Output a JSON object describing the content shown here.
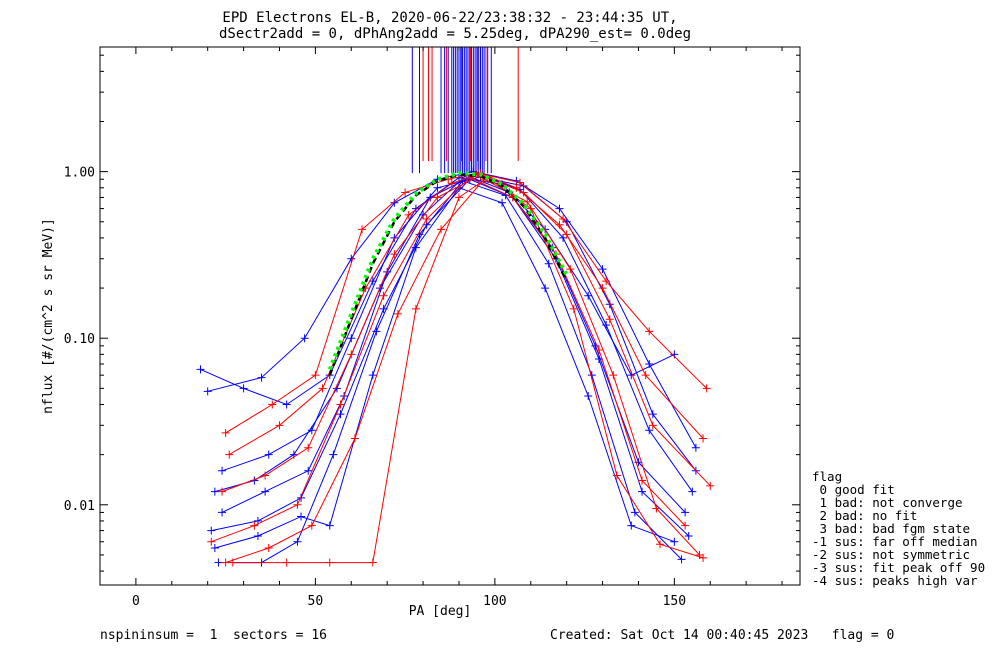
{
  "title_line1": "EPD Electrons EL-B, 2020-06-22/23:38:32 - 23:44:35 UT,",
  "title_line2": "dSectr2add = 0, dPhAng2add = 5.25deg, dPA290_est=   0.0deg",
  "footer": {
    "left": "nspininsum =  1  sectors = 16",
    "right": "Created: Sat Oct 14 00:40:45 2023   flag = 0"
  },
  "legend": {
    "title": "flag",
    "items": [
      " 0 good fit",
      " 1 bad: not converge",
      " 2 bad: no fit",
      " 3 bad: bad fgm state",
      "-1 sus: far off median",
      "-2 sus: not symmetric",
      "-3 sus: fit peak off 90",
      "-4 sus: peaks high var"
    ]
  },
  "colors": {
    "series_blue": "#0000ff",
    "series_red": "#ff0000",
    "median": "#000000",
    "fit": "#00ff00"
  },
  "chart_data": {
    "type": "line",
    "xlabel": "PA [deg]",
    "ylabel": "nflux [#/(cm^2 s sr MeV)]",
    "xlim": [
      -10,
      185
    ],
    "ylim_log": [
      0.0033,
      5.6
    ],
    "y_scale": "log",
    "x_ticks": [
      0,
      50,
      100,
      150
    ],
    "x_tick_labels": [
      "0",
      "50",
      "100",
      "150"
    ],
    "y_ticks": [
      0.01,
      0.1,
      1.0
    ],
    "y_tick_labels": [
      "0.01",
      "0.10",
      "1.00"
    ],
    "series": [
      {
        "color": "blue",
        "x": [
          20,
          35,
          47,
          60,
          72,
          84,
          94,
          106,
          118,
          130,
          143,
          156
        ],
        "y": [
          0.048,
          0.058,
          0.1,
          0.3,
          0.65,
          0.9,
          1.0,
          0.88,
          0.6,
          0.26,
          0.07,
          0.022
        ]
      },
      {
        "color": "blue",
        "x": [
          22,
          33,
          44,
          56,
          68,
          80,
          92,
          104,
          116,
          128,
          140,
          153
        ],
        "y": [
          0.012,
          0.014,
          0.02,
          0.05,
          0.2,
          0.55,
          0.95,
          0.75,
          0.35,
          0.09,
          0.018,
          0.009
        ]
      },
      {
        "color": "blue",
        "x": [
          21,
          34,
          46,
          57,
          69,
          81,
          93,
          105,
          117,
          129,
          141,
          154
        ],
        "y": [
          0.007,
          0.008,
          0.011,
          0.035,
          0.15,
          0.48,
          0.9,
          0.7,
          0.3,
          0.075,
          0.012,
          0.0065
        ]
      },
      {
        "color": "blue",
        "x": [
          23,
          35,
          45,
          55,
          67,
          79,
          91,
          103,
          115,
          127,
          139,
          152
        ],
        "y": [
          0.0045,
          0.0045,
          0.006,
          0.02,
          0.11,
          0.42,
          0.88,
          0.72,
          0.28,
          0.06,
          0.009,
          0.0047
        ]
      },
      {
        "color": "blue",
        "x": [
          18,
          30,
          42,
          54,
          66,
          78,
          90,
          102,
          114,
          126,
          138,
          150
        ],
        "y": [
          0.065,
          0.05,
          0.04,
          0.06,
          0.22,
          0.6,
          0.92,
          0.84,
          0.45,
          0.18,
          0.06,
          0.08
        ]
      },
      {
        "color": "blue",
        "x": [
          24,
          36,
          48,
          58,
          70,
          82,
          95,
          107,
          119,
          131,
          143,
          155
        ],
        "y": [
          0.009,
          0.012,
          0.016,
          0.045,
          0.25,
          0.7,
          0.97,
          0.78,
          0.4,
          0.12,
          0.028,
          0.012
        ]
      },
      {
        "color": "blue",
        "x": [
          22,
          34,
          46,
          54,
          66,
          78,
          90,
          102,
          114,
          126,
          138,
          150
        ],
        "y": [
          0.0055,
          0.0065,
          0.0085,
          0.0075,
          0.06,
          0.35,
          0.8,
          0.65,
          0.2,
          0.045,
          0.0075,
          0.006
        ]
      },
      {
        "color": "blue",
        "x": [
          24,
          37,
          49,
          60,
          72,
          84,
          96,
          108,
          120,
          132,
          144,
          156
        ],
        "y": [
          0.016,
          0.02,
          0.028,
          0.1,
          0.4,
          0.8,
          0.93,
          0.82,
          0.5,
          0.16,
          0.035,
          0.016
        ]
      },
      {
        "color": "red",
        "x": [
          21,
          33,
          45,
          57,
          69,
          81,
          93,
          105,
          117,
          129,
          141,
          153
        ],
        "y": [
          0.006,
          0.0075,
          0.01,
          0.04,
          0.18,
          0.52,
          0.92,
          0.7,
          0.32,
          0.085,
          0.014,
          0.0075
        ]
      },
      {
        "color": "red",
        "x": [
          25,
          37,
          49,
          61,
          73,
          85,
          97,
          109,
          121,
          133,
          145,
          157
        ],
        "y": [
          0.0045,
          0.0055,
          0.0075,
          0.025,
          0.14,
          0.45,
          0.9,
          0.66,
          0.26,
          0.06,
          0.0095,
          0.005
        ]
      },
      {
        "color": "red",
        "x": [
          24,
          36,
          48,
          60,
          72,
          84,
          96,
          108,
          120,
          132,
          144,
          160
        ],
        "y": [
          0.012,
          0.015,
          0.022,
          0.08,
          0.32,
          0.7,
          0.95,
          0.75,
          0.42,
          0.13,
          0.03,
          0.013
        ]
      },
      {
        "color": "red",
        "x": [
          26,
          40,
          52,
          64,
          76,
          88,
          96,
          106,
          118,
          130,
          142,
          158
        ],
        "y": [
          0.02,
          0.03,
          0.05,
          0.2,
          0.55,
          0.85,
          0.98,
          0.8,
          0.48,
          0.2,
          0.06,
          0.025
        ]
      },
      {
        "color": "red",
        "x": [
          27,
          42,
          54,
          66,
          78,
          90,
          98,
          110,
          122,
          134,
          146,
          158
        ],
        "y": [
          0.0045,
          0.0045,
          0.0045,
          0.0045,
          0.15,
          0.7,
          0.92,
          0.6,
          0.15,
          0.015,
          0.0058,
          0.0048
        ]
      },
      {
        "color": "red",
        "x": [
          25,
          38,
          50,
          63,
          75,
          87,
          95,
          107,
          119,
          131,
          143,
          159
        ],
        "y": [
          0.027,
          0.04,
          0.06,
          0.45,
          0.75,
          0.9,
          0.98,
          0.86,
          0.52,
          0.22,
          0.11,
          0.05
        ]
      }
    ],
    "median_dashed": {
      "color": "black",
      "x": [
        54,
        60,
        66,
        72,
        78,
        84,
        90,
        96,
        102,
        108,
        114,
        120
      ],
      "y": [
        0.06,
        0.13,
        0.28,
        0.5,
        0.72,
        0.88,
        0.96,
        0.94,
        0.82,
        0.62,
        0.4,
        0.22
      ]
    },
    "fit_dotted": {
      "color": "green",
      "x": [
        54,
        60,
        66,
        72,
        78,
        84,
        90,
        96,
        102,
        108,
        114,
        120
      ],
      "y": [
        0.065,
        0.14,
        0.3,
        0.52,
        0.74,
        0.9,
        0.98,
        0.96,
        0.84,
        0.64,
        0.42,
        0.24
      ]
    },
    "vertical_lines": {
      "y_from": 0.98,
      "blue_x": [
        77,
        79,
        85,
        86,
        87,
        88,
        88.5,
        89,
        89.5,
        90,
        90.5,
        91,
        91.5,
        92,
        92.5,
        93,
        93.5,
        94,
        94.5,
        95,
        95.5,
        96,
        96.5,
        97,
        98,
        99
      ],
      "red_x": [
        80,
        81.5,
        82.5,
        86.5,
        90.7,
        93.2,
        95.2,
        97.5,
        106.5
      ]
    }
  }
}
